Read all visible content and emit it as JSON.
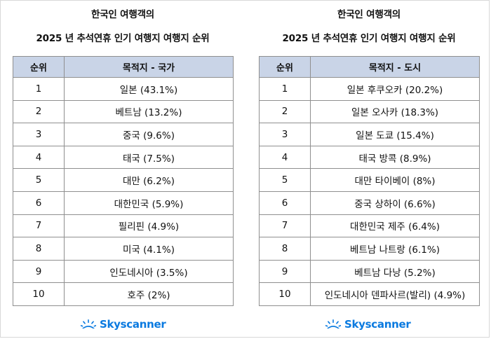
{
  "left": {
    "title_line1": "한국인 여행객의",
    "title_line2": "2025 년 추석연휴 인기 여행지 여행지 순위",
    "header_rank": "순위",
    "header_dest": "목적지 - 국가",
    "rows": [
      {
        "rank": "1",
        "dest": "일본 (43.1%)"
      },
      {
        "rank": "2",
        "dest": "베트남 (13.2%)"
      },
      {
        "rank": "3",
        "dest": "중국 (9.6%)"
      },
      {
        "rank": "4",
        "dest": "태국 (7.5%)"
      },
      {
        "rank": "5",
        "dest": "대만 (6.2%)"
      },
      {
        "rank": "6",
        "dest": "대한민국 (5.9%)"
      },
      {
        "rank": "7",
        "dest": "필리핀 (4.9%)"
      },
      {
        "rank": "8",
        "dest": "미국 (4.1%)"
      },
      {
        "rank": "9",
        "dest": "인도네시아 (3.5%)"
      },
      {
        "rank": "10",
        "dest": "호주 (2%)"
      }
    ],
    "logo_text": "Skyscanner"
  },
  "right": {
    "title_line1": "한국인 여행객의",
    "title_line2": "2025 년 추석연휴 인기 여행지 여행지 순위",
    "header_rank": "순위",
    "header_dest": "목적지 - 도시",
    "rows": [
      {
        "rank": "1",
        "dest": "일본 후쿠오카 (20.2%)"
      },
      {
        "rank": "2",
        "dest": "일본 오사카 (18.3%)"
      },
      {
        "rank": "3",
        "dest": "일본 도쿄 (15.4%)"
      },
      {
        "rank": "4",
        "dest": "태국 방콕 (8.9%)"
      },
      {
        "rank": "5",
        "dest": "대만 타이베이 (8%)"
      },
      {
        "rank": "6",
        "dest": "중국 상하이 (6.6%)"
      },
      {
        "rank": "7",
        "dest": "대한민국 제주 (6.4%)"
      },
      {
        "rank": "8",
        "dest": "베트남 나트랑 (6.1%)"
      },
      {
        "rank": "9",
        "dest": "베트남 다낭 (5.2%)"
      },
      {
        "rank": "10",
        "dest": "인도네시아 덴파사르(발리) (4.9%)"
      }
    ],
    "logo_text": "Skyscanner"
  },
  "colors": {
    "header_bg": "#c9d4e7",
    "border": "#8f8f8f",
    "logo": "#0a7ae0"
  },
  "icons": {
    "logo": "sunrise-icon"
  }
}
